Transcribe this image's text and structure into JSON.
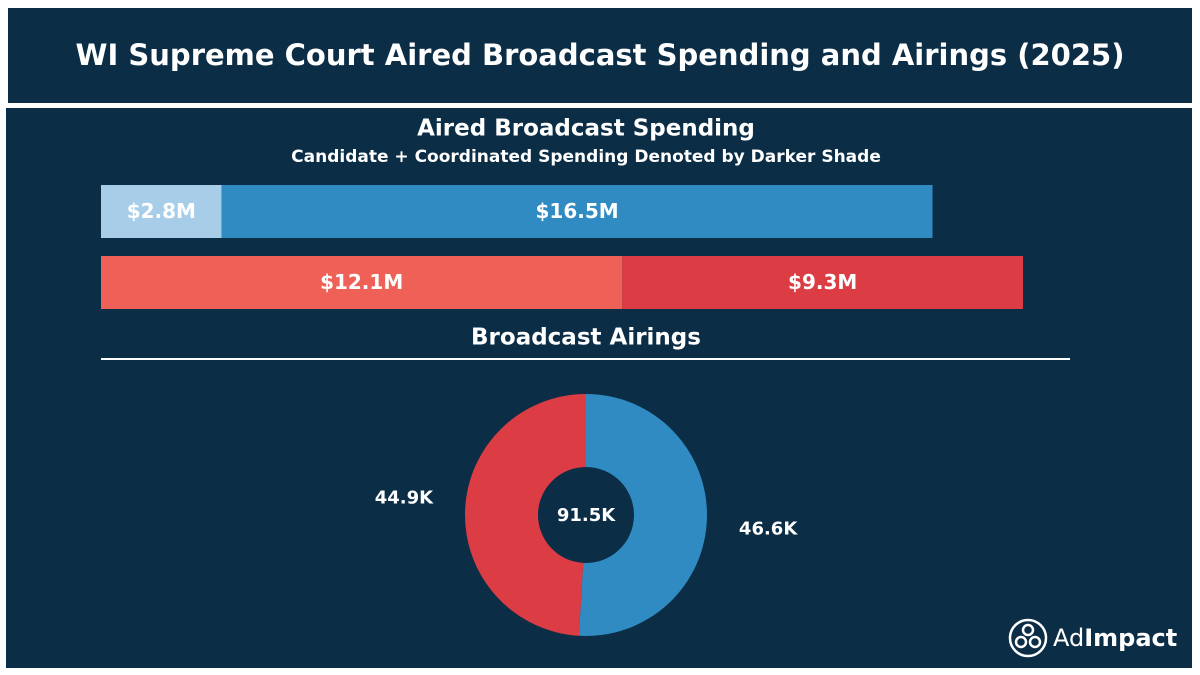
{
  "header": {
    "title": "WI Supreme Court Aired Broadcast Spending and Airings (2025)"
  },
  "chart_data": [
    {
      "type": "bar",
      "orientation": "horizontal",
      "stacked": true,
      "title": "Aired Broadcast Spending",
      "subtitle": "Candidate + Coordinated Spending Denoted by Darker Shade",
      "categories": [
        null,
        null
      ],
      "series": [
        {
          "colors": [
            "#a7cde9",
            "#ef6157"
          ],
          "values": [
            2.8,
            12.1
          ],
          "value_labels": [
            "$2.8M",
            "$12.1M"
          ]
        },
        {
          "colors": [
            "#2f8bc1",
            "#dc3c43"
          ],
          "values": [
            16.5,
            9.3
          ],
          "value_labels": [
            "$16.5M",
            "$9.3M"
          ]
        }
      ]
    },
    {
      "type": "pie",
      "donut": true,
      "title": "Broadcast Airings",
      "values": [
        46.6,
        44.9
      ],
      "value_labels": [
        "46.6K",
        "44.9K"
      ],
      "colors": [
        "#2f8bc1",
        "#dc3c43"
      ],
      "center_label": "91.5K"
    }
  ],
  "logo": {
    "light": "Ad",
    "bold": "Impact"
  }
}
